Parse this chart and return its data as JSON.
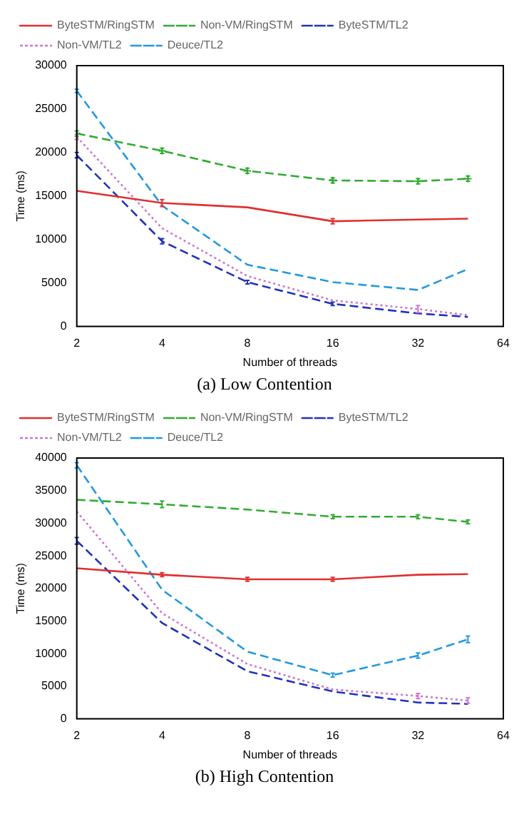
{
  "chart_data": [
    {
      "type": "line",
      "xlabel": "Number of threads",
      "ylabel": "Time (ms)",
      "annotations": [
        "(a)  Low Contention"
      ],
      "log": "x",
      "x": [
        2,
        4,
        8,
        16,
        32,
        48
      ],
      "xlim": [
        2,
        64
      ],
      "xticks": [
        2,
        4,
        8,
        16,
        32,
        64
      ],
      "ylim": [
        0,
        30000
      ],
      "yticks": [
        0,
        5000,
        10000,
        15000,
        20000,
        25000,
        30000
      ],
      "grid": false,
      "legend": "top left",
      "series": [
        {
          "name": "ByteSTM/RingSTM",
          "color": "#e03030",
          "line_style": "solid",
          "values": [
            15600,
            14200,
            13700,
            12100,
            12300,
            12400
          ],
          "errors": [
            null,
            400,
            null,
            300,
            null,
            null
          ]
        },
        {
          "name": "Non-VM/RingSTM",
          "color": "#33aa33",
          "line_style": "dashed",
          "marker": "cross",
          "values": [
            22200,
            20200,
            17900,
            16800,
            16700,
            17000
          ],
          "errors": [
            300,
            300,
            300,
            300,
            300,
            300
          ]
        },
        {
          "name": "ByteSTM/TL2",
          "color": "#2233bb",
          "line_style": "dashed",
          "values": [
            19700,
            9800,
            5100,
            2600,
            1500,
            1100
          ],
          "errors": [
            300,
            300,
            200,
            200,
            null,
            null
          ]
        },
        {
          "name": "Non-VM/TL2",
          "color": "#cc77cc",
          "line_style": "dotted",
          "values": [
            21800,
            11300,
            5800,
            3000,
            2000,
            1300
          ],
          "errors": [
            300,
            null,
            null,
            null,
            400,
            null
          ]
        },
        {
          "name": "Deuce/TL2",
          "color": "#2299dd",
          "line_style": "dashed",
          "values": [
            27100,
            13900,
            7100,
            5100,
            4200,
            6600
          ],
          "errors": [
            200,
            null,
            null,
            null,
            null,
            null
          ]
        }
      ]
    },
    {
      "type": "line",
      "xlabel": "Number of threads",
      "ylabel": "Time (ms)",
      "annotations": [
        "(b)  High Contention"
      ],
      "log": "x",
      "x": [
        2,
        4,
        8,
        16,
        32,
        48
      ],
      "xlim": [
        2,
        64
      ],
      "xticks": [
        2,
        4,
        8,
        16,
        32,
        64
      ],
      "ylim": [
        0,
        40000
      ],
      "yticks": [
        0,
        5000,
        10000,
        15000,
        20000,
        25000,
        30000,
        35000,
        40000
      ],
      "grid": false,
      "legend": "top left",
      "series": [
        {
          "name": "ByteSTM/RingSTM",
          "color": "#e03030",
          "line_style": "solid",
          "values": [
            23100,
            22100,
            21400,
            21400,
            22100,
            22200
          ],
          "errors": [
            null,
            300,
            300,
            300,
            null,
            null
          ]
        },
        {
          "name": "Non-VM/RingSTM",
          "color": "#33aa33",
          "line_style": "dashed",
          "values": [
            33600,
            32900,
            32100,
            31000,
            31000,
            30200
          ],
          "errors": [
            null,
            500,
            null,
            300,
            300,
            300
          ]
        },
        {
          "name": "ByteSTM/TL2",
          "color": "#2233bb",
          "line_style": "dashed",
          "values": [
            27300,
            14700,
            7300,
            4200,
            2500,
            2300
          ],
          "errors": [
            500,
            null,
            null,
            null,
            null,
            null
          ]
        },
        {
          "name": "Non-VM/TL2",
          "color": "#cc77cc",
          "line_style": "dotted",
          "values": [
            31800,
            16200,
            8400,
            4500,
            3500,
            2800
          ],
          "errors": [
            null,
            null,
            null,
            null,
            400,
            400
          ]
        },
        {
          "name": "Deuce/TL2",
          "color": "#2299dd",
          "line_style": "dashed",
          "values": [
            38900,
            19800,
            10300,
            6700,
            9700,
            12200
          ],
          "errors": [
            400,
            null,
            null,
            300,
            400,
            500
          ]
        }
      ]
    }
  ]
}
